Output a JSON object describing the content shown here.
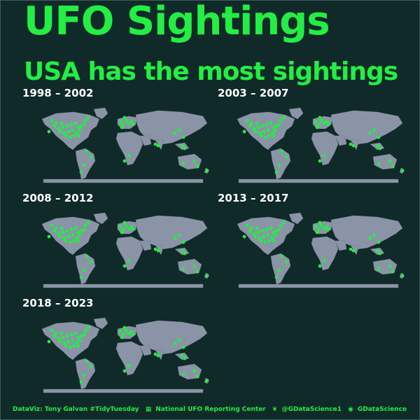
{
  "title": "UFO Sightings",
  "subtitle": "USA has the most sightings",
  "colors": {
    "background": "#0f2a28",
    "land": "#8b94a7",
    "sighting": "#22ee44",
    "heading": "#22ee44",
    "panel_label": "#ffffff"
  },
  "panels": [
    {
      "label": "1998 – 2002"
    },
    {
      "label": "2003 – 2007"
    },
    {
      "label": "2008 – 2012"
    },
    {
      "label": "2013 – 2017"
    },
    {
      "label": "2018 – 2023"
    }
  ],
  "caption": {
    "author": "DataViz: Tony Galvan #TidyTuesday",
    "source_icon": "table-icon",
    "source": "National UFO Reporting Center",
    "twitter_icon": "twitter-bird-icon",
    "twitter": "@GDataScience1",
    "github_icon": "github-icon",
    "github": "GDataScience"
  }
}
